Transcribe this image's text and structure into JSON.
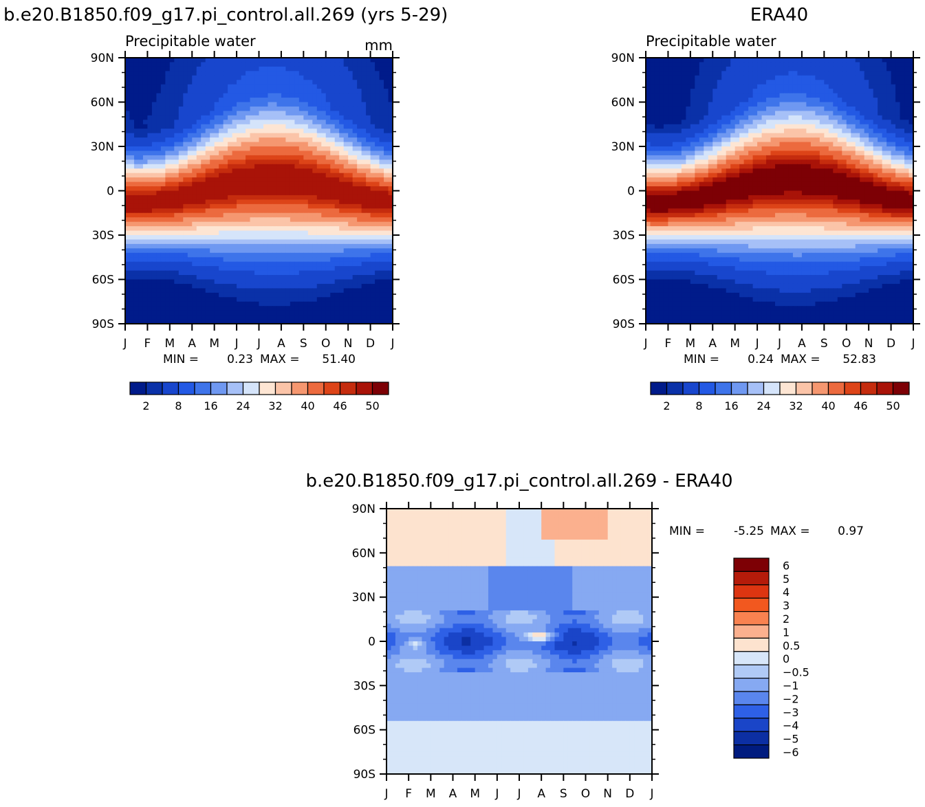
{
  "chart_data": [
    {
      "type": "heatmap",
      "title": "b.e20.B1850.f09_g17.pi_control.all.269 (yrs 5-29)",
      "subtitle": "Precipitable water",
      "units": "mm",
      "x_ticks": [
        "J",
        "F",
        "M",
        "A",
        "M",
        "J",
        "J",
        "A",
        "S",
        "O",
        "N",
        "D",
        "J"
      ],
      "y_ticks": [
        "90N",
        "60N",
        "30N",
        "0",
        "30S",
        "60S",
        "90S"
      ],
      "y_values": [
        90,
        60,
        30,
        0,
        -30,
        -60,
        -90
      ],
      "stats": {
        "min_label": "MIN =",
        "min": "0.23",
        "max_label": "MAX =",
        "max": "51.40"
      },
      "colorbar_labels": [
        "2",
        "8",
        "16",
        "24",
        "32",
        "40",
        "46",
        "50"
      ],
      "colorbar_levels": [
        2,
        4,
        8,
        12,
        16,
        20,
        24,
        28,
        32,
        36,
        40,
        44,
        46,
        48,
        50
      ],
      "field": {
        "equator_max": 50,
        "peak_month": 6.8,
        "peak_lat": 8,
        "pole_north": 8,
        "pole_south": 1,
        "seasonal_shift": 10
      }
    },
    {
      "type": "heatmap",
      "title": "ERA40",
      "subtitle": "Precipitable water",
      "x_ticks": [
        "J",
        "F",
        "M",
        "A",
        "M",
        "J",
        "J",
        "A",
        "S",
        "O",
        "N",
        "D",
        "J"
      ],
      "y_ticks": [
        "90N",
        "60N",
        "30N",
        "0",
        "30S",
        "60S",
        "90S"
      ],
      "y_values": [
        90,
        60,
        30,
        0,
        -30,
        -60,
        -90
      ],
      "stats": {
        "min_label": "MIN =",
        "min": "0.24",
        "max_label": "MAX =",
        "max": "52.83"
      },
      "colorbar_labels": [
        "2",
        "8",
        "16",
        "24",
        "32",
        "40",
        "46",
        "50"
      ],
      "colorbar_levels": [
        2,
        4,
        8,
        12,
        16,
        20,
        24,
        28,
        32,
        36,
        40,
        44,
        46,
        48,
        50
      ],
      "field": {
        "equator_max": 52,
        "peak_month": 6.8,
        "peak_lat": 8,
        "pole_north": 7,
        "pole_south": 1,
        "seasonal_shift": 10
      }
    },
    {
      "type": "heatmap",
      "title": "b.e20.B1850.f09_g17.pi_control.all.269 - ERA40",
      "x_ticks": [
        "J",
        "F",
        "M",
        "A",
        "M",
        "J",
        "J",
        "A",
        "S",
        "O",
        "N",
        "D",
        "J"
      ],
      "y_ticks": [
        "90N",
        "60N",
        "30N",
        "0",
        "30S",
        "60S",
        "90S"
      ],
      "y_values": [
        90,
        60,
        30,
        0,
        -30,
        -60,
        -90
      ],
      "stats": {
        "min_label": "MIN =",
        "min": "-5.25",
        "max_label": "MAX =",
        "max": "0.97"
      },
      "colorbar_labels": [
        "6",
        "5",
        "4",
        "3",
        "2",
        "1",
        "0.5",
        "0",
        "-0.5",
        "-1",
        "-2",
        "-3",
        "-4",
        "-5",
        "-6"
      ],
      "colorbar_levels": [
        6,
        5,
        4,
        3,
        2,
        1,
        0.5,
        0,
        -0.5,
        -1,
        -2,
        -3,
        -4,
        -5,
        -6
      ]
    }
  ],
  "colors": {
    "precip_palette": [
      "#001b8a",
      "#0a31a8",
      "#1846cd",
      "#2359e4",
      "#3e74ea",
      "#6f98f1",
      "#a6c0f7",
      "#d5e4fa",
      "#fde5d3",
      "#fbc4a8",
      "#f59770",
      "#ec6a3e",
      "#dd4418",
      "#c52c0e",
      "#a91308",
      "#7d0005"
    ],
    "diff_palette": [
      "#7d0005",
      "#b51b0a",
      "#dd3511",
      "#f2581f",
      "#f98250",
      "#fbb08e",
      "#fde3cf",
      "#d7e6f9",
      "#b0caf6",
      "#86a9f2",
      "#5a86ed",
      "#2e60e6",
      "#1a45c8",
      "#0c2fa3",
      "#001b7f"
    ]
  }
}
